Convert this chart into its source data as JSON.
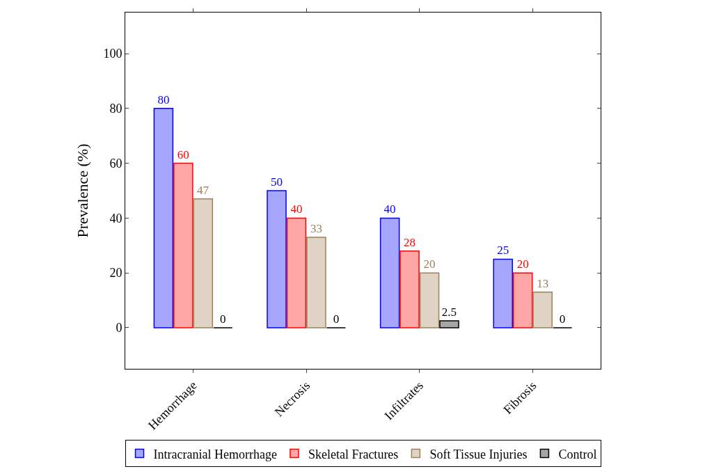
{
  "chart_data": {
    "type": "bar",
    "ylabel": "Prevalence (%)",
    "categories": [
      "Hemorrhage",
      "Necrosis",
      "Infiltrates",
      "Fibrosis"
    ],
    "series": [
      {
        "name": "Intracranial Hemorrhage",
        "color": "#0000ff",
        "values": [
          80,
          50,
          40,
          25
        ]
      },
      {
        "name": "Skeletal Fractures",
        "color": "#ff0000",
        "values": [
          60,
          40,
          28,
          20
        ]
      },
      {
        "name": "Soft Tissue Injuries",
        "color": "#a0805a",
        "values": [
          47,
          33,
          20,
          13
        ]
      },
      {
        "name": "Control",
        "color": "#000000",
        "values": [
          0,
          0,
          2.5,
          0
        ]
      }
    ],
    "ylim": [
      -15,
      115
    ],
    "yticks": [
      0,
      20,
      40,
      60,
      80,
      100
    ],
    "legend": "bottom",
    "data_labels": true
  }
}
